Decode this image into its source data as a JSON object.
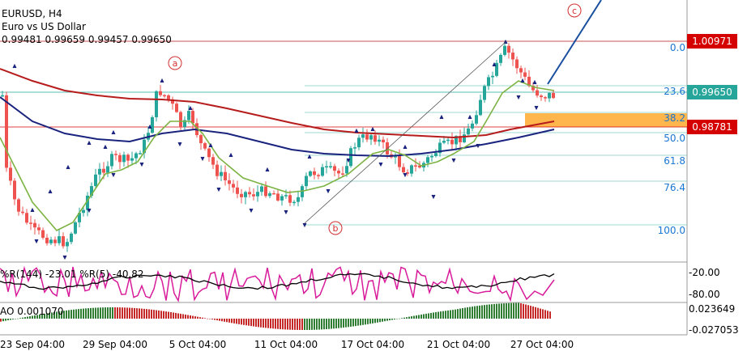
{
  "header": {
    "symbol": "EURUSD, H4",
    "description": "Euro vs US Dollar",
    "ohlc": "0.99481 0.99659 0.99457 0.99650"
  },
  "price_axis": {
    "tag_high": "1.00971",
    "tag_current": "0.99650",
    "tag_low": "0.98781"
  },
  "fib_levels": [
    "0.0",
    "23.6",
    "38.2",
    "50.0",
    "61.8",
    "76.4",
    "100.0"
  ],
  "wave_labels": [
    "a",
    "b",
    "c"
  ],
  "oscillator": {
    "label": "%R(144) -23.01 %R(5) -40.82",
    "ticks": [
      "-20.00",
      "-80.00"
    ]
  },
  "ao": {
    "label": "AO 0.001070",
    "ticks": [
      "0.023649",
      "-0.027053"
    ]
  },
  "time_axis": [
    "23 Sep 04:00",
    "29 Sep 04:00",
    "5 Oct 04:00",
    "11 Oct 04:00",
    "17 Oct 04:00",
    "21 Oct 04:00",
    "27 Oct 04:00"
  ],
  "colors": {
    "bull": "#26a69a",
    "bear": "#ef5350",
    "ma_fast": "#7cb342",
    "ma_mid": "#1a237e",
    "ma_slow": "#b71c1c",
    "fib": "#80cbc4",
    "fib_text": "#1976d2",
    "zone": "#ffb74d",
    "wr_slow": "#000000",
    "wr_fast": "#d81b9a",
    "label_red": "#d32f2f",
    "current_tag": "#26a69a",
    "tag_red": "#d50000"
  },
  "chart_data": {
    "type": "candlestick",
    "symbol": "EURUSD",
    "timeframe": "H4",
    "last_ohlc": {
      "open": 0.99481,
      "high": 0.99659,
      "low": 0.99457,
      "close": 0.9965
    },
    "price_tags": {
      "high": 1.00971,
      "current": 0.9965,
      "low": 0.98781
    },
    "fibonacci_levels": [
      0.0,
      23.6,
      38.2,
      50.0,
      61.8,
      76.4,
      100.0
    ],
    "x_labels": [
      "23 Sep 04:00",
      "29 Sep 04:00",
      "5 Oct 04:00",
      "11 Oct 04:00",
      "17 Oct 04:00",
      "21 Oct 04:00",
      "27 Oct 04:00"
    ],
    "indicators": [
      {
        "name": "%R(144)",
        "value": -23.01
      },
      {
        "name": "%R(5)",
        "value": -40.82
      },
      {
        "name": "AO",
        "value": 0.00107
      }
    ],
    "ao_axis": [
      0.023649,
      -0.027053
    ],
    "wr_axis": [
      -20.0,
      -80.0
    ]
  }
}
